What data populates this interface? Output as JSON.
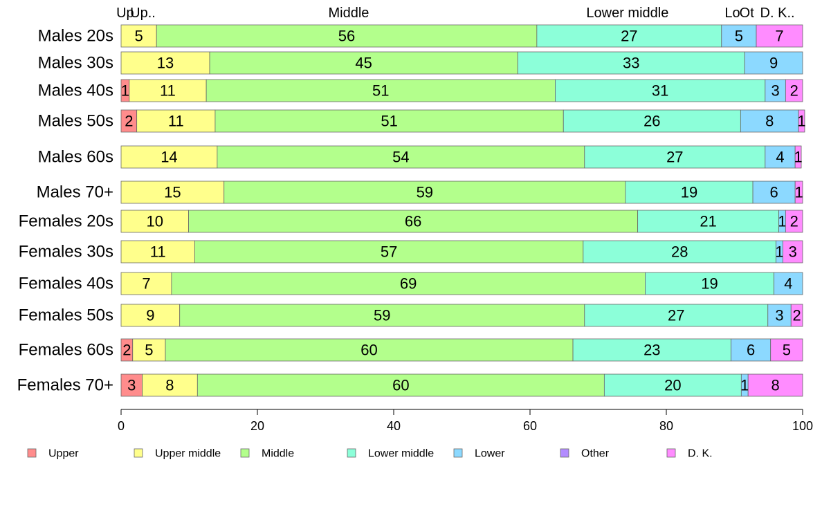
{
  "chart_data": {
    "type": "bar",
    "orientation": "horizontal",
    "stacked": true,
    "title": "",
    "xlabel": "",
    "ylabel": "",
    "xlim": [
      0,
      100
    ],
    "x_ticks": [
      0,
      20,
      40,
      60,
      80,
      100
    ],
    "grid": false,
    "legend_position": "bottom",
    "categories": [
      "Males 20s",
      "Males 30s",
      "Males 40s",
      "Males 50s",
      "Males 60s",
      "Males 70+",
      "Females 20s",
      "Females 30s",
      "Females 40s",
      "Females 50s",
      "Females 60s",
      "Females 70+"
    ],
    "series": [
      {
        "name": "Upper",
        "color": "#ff8c8c",
        "values": [
          0,
          0,
          1.2,
          2.3,
          0,
          0,
          0,
          0,
          0,
          0,
          1.7,
          3.1
        ]
      },
      {
        "name": "Upper middle",
        "color": "#ffff8c",
        "values": [
          5.2,
          13.0,
          11.3,
          11.5,
          14.1,
          15.1,
          9.9,
          10.8,
          7.4,
          8.6,
          4.8,
          8.1
        ]
      },
      {
        "name": "Middle",
        "color": "#b3ff8c",
        "values": [
          55.8,
          45.2,
          51.2,
          51.1,
          53.9,
          58.9,
          65.9,
          57.0,
          69.5,
          59.4,
          59.8,
          59.7
        ]
      },
      {
        "name": "Lower middle",
        "color": "#8cffd9",
        "values": [
          27.1,
          33.3,
          30.8,
          26.0,
          26.5,
          18.7,
          20.7,
          28.3,
          18.9,
          26.9,
          23.2,
          20.1
        ]
      },
      {
        "name": "Lower",
        "color": "#8cd9ff",
        "values": [
          5.1,
          8.5,
          3.0,
          8.5,
          4.4,
          6.2,
          1.0,
          1.0,
          4.2,
          3.4,
          5.8,
          1.0
        ]
      },
      {
        "name": "Other",
        "color": "#b38cff",
        "values": [
          0,
          0.0,
          0,
          0,
          0,
          0,
          0,
          0,
          0.0,
          0,
          0,
          0
        ]
      },
      {
        "name": "D. K.",
        "color": "#ff8cff",
        "values": [
          6.8,
          0,
          2.5,
          0.9,
          0.9,
          1.1,
          2.5,
          2.9,
          0,
          1.7,
          4.7,
          8.0
        ]
      }
    ],
    "data_labels": [
      [
        "",
        "5",
        "56",
        "27",
        "5",
        "",
        "7"
      ],
      [
        "",
        "13",
        "45",
        "33",
        "9",
        "",
        ""
      ],
      [
        "1",
        "11",
        "51",
        "31",
        "3",
        "",
        "2"
      ],
      [
        "2",
        "11",
        "51",
        "26",
        "8",
        "",
        "1"
      ],
      [
        "",
        "14",
        "54",
        "27",
        "4",
        "",
        "1"
      ],
      [
        "",
        "15",
        "59",
        "19",
        "6",
        "",
        "1"
      ],
      [
        "",
        "10",
        "66",
        "21",
        "1",
        "",
        "2"
      ],
      [
        "",
        "11",
        "57",
        "28",
        "1",
        "",
        "3"
      ],
      [
        "",
        "7",
        "69",
        "19",
        "4",
        "",
        ""
      ],
      [
        "",
        "9",
        "59",
        "27",
        "3",
        "",
        "2"
      ],
      [
        "2",
        "5",
        "60",
        "23",
        "6",
        "",
        "5"
      ],
      [
        "3",
        "8",
        "60",
        "20",
        "1",
        "",
        "8"
      ]
    ],
    "top_labels": [
      {
        "text": "Up",
        "at": 0.6
      },
      {
        "text": "Up..",
        "at": 3.2
      },
      {
        "text": "Middle",
        "at": 33.4
      },
      {
        "text": "Lower middle",
        "at": 74.3
      },
      {
        "text": "Lo",
        "at": 89.7
      },
      {
        "text": "Ot",
        "at": 91.8
      },
      {
        "text": "D. K..",
        "at": 96.3
      }
    ]
  }
}
